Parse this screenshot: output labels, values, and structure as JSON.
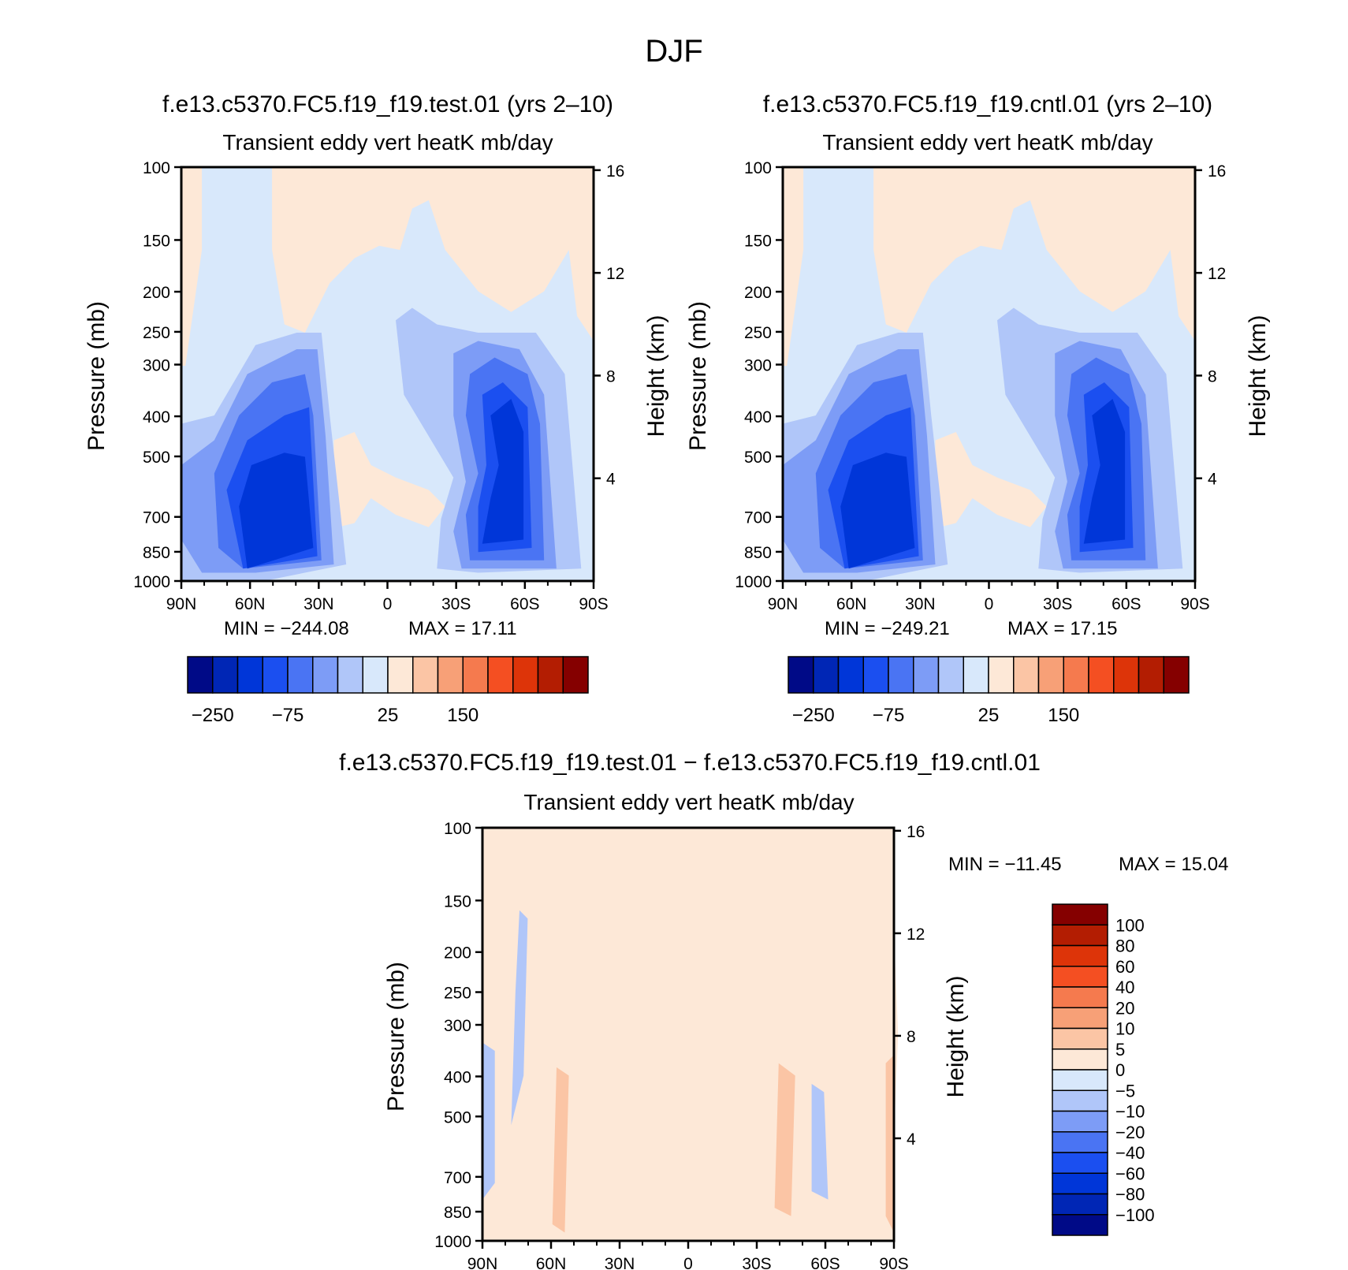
{
  "figure_title": "DJF",
  "chart_data": [
    {
      "type": "heatmap",
      "case_title": "f.e13.c5370.FC5.f19_f19.test.01 (yrs 2–10)",
      "variable_title": "Transient eddy vert heatK mb/day",
      "ylabel": "Pressure (mb)",
      "ylabel_right": "Height (km)",
      "x_ticks": [
        "90N",
        "60N",
        "30N",
        "0",
        "30S",
        "60S",
        "90S"
      ],
      "y_ticks": [
        "100",
        "150",
        "200",
        "250",
        "300",
        "400",
        "500",
        "700",
        "850",
        "1000"
      ],
      "y_ticks_right": [
        "16",
        "12",
        "8",
        "4"
      ],
      "min_text": "MIN = −244.08",
      "max_text": "MAX =   17.11",
      "colorbar_labels": [
        "−250",
        "−75",
        "25",
        "150"
      ],
      "colors": [
        "#000a87",
        "#0026b5",
        "#0036d8",
        "#1b4ff0",
        "#4a74f3",
        "#7d9cf6",
        "#b0c6f9",
        "#d8e8fb",
        "#fde8d7",
        "#fbc5a5",
        "#f7a077",
        "#f57a4e",
        "#f44f22",
        "#dd3409",
        "#b31d02",
        "#850000"
      ],
      "regions": [
        {
          "level": 8,
          "desc": "positive upper/near-zero"
        },
        {
          "level": 6,
          "desc": "NH deep negative core"
        },
        {
          "level": 6,
          "desc": "SH deep negative core"
        }
      ]
    },
    {
      "type": "heatmap",
      "case_title": "f.e13.c5370.FC5.f19_f19.cntl.01 (yrs 2–10)",
      "variable_title": "Transient eddy vert heatK mb/day",
      "ylabel": "Pressure (mb)",
      "ylabel_right": "Height (km)",
      "x_ticks": [
        "90N",
        "60N",
        "30N",
        "0",
        "30S",
        "60S",
        "90S"
      ],
      "y_ticks": [
        "100",
        "150",
        "200",
        "250",
        "300",
        "400",
        "500",
        "700",
        "850",
        "1000"
      ],
      "y_ticks_right": [
        "16",
        "12",
        "8",
        "4"
      ],
      "min_text": "MIN = −249.21",
      "max_text": "MAX =   17.15",
      "colorbar_labels": [
        "−250",
        "−75",
        "25",
        "150"
      ]
    },
    {
      "type": "heatmap",
      "case_title": "f.e13.c5370.FC5.f19_f19.test.01 − f.e13.c5370.FC5.f19_f19.cntl.01",
      "variable_title": "Transient eddy vert heatK mb/day",
      "ylabel": "Pressure (mb)",
      "ylabel_right": "Height (km)",
      "x_ticks": [
        "90N",
        "60N",
        "30N",
        "0",
        "30S",
        "60S",
        "90S"
      ],
      "y_ticks": [
        "100",
        "150",
        "200",
        "250",
        "300",
        "400",
        "500",
        "700",
        "850",
        "1000"
      ],
      "y_ticks_right": [
        "16",
        "12",
        "8",
        "4"
      ],
      "min_text": "MIN = −11.45",
      "max_text": "MAX =   15.04",
      "colorbar_labels": [
        "100",
        "80",
        "60",
        "40",
        "20",
        "10",
        "5",
        "0",
        "−5",
        "−10",
        "−20",
        "−40",
        "−60",
        "−80",
        "−100"
      ],
      "colors": [
        "#850000",
        "#b31d02",
        "#dd3409",
        "#f44f22",
        "#f57a4e",
        "#f7a077",
        "#fbc5a5",
        "#fde8d7",
        "#d8e8fb",
        "#b0c6f9",
        "#7d9cf6",
        "#4a74f3",
        "#1b4ff0",
        "#0036d8",
        "#0026b5",
        "#000a87"
      ]
    }
  ]
}
